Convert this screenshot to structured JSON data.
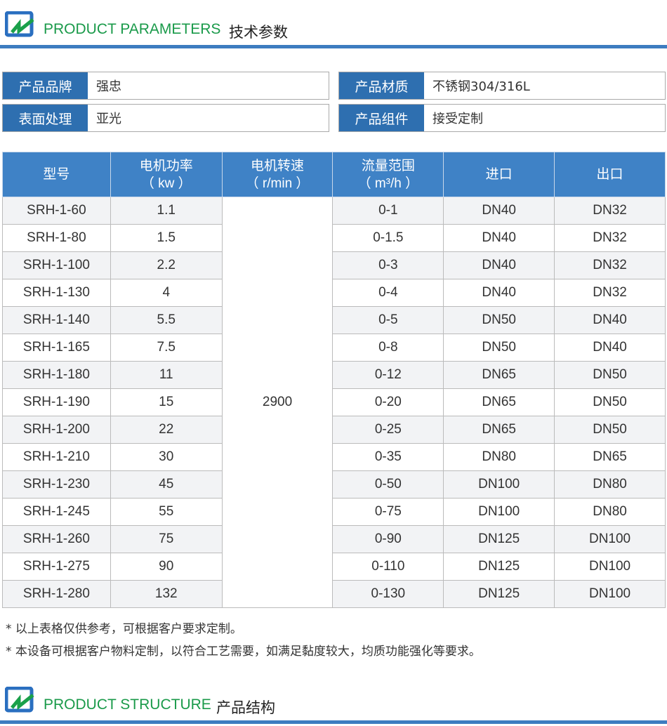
{
  "section1": {
    "en": "PRODUCT PARAMETERS",
    "cn": "技术参数"
  },
  "attributes": [
    {
      "key": "产品品牌",
      "value": "强忠"
    },
    {
      "key": "产品材质",
      "value": "不锈钢304/316L"
    },
    {
      "key": "表面处理",
      "value": "亚光"
    },
    {
      "key": "产品组件",
      "value": "接受定制"
    }
  ],
  "table": {
    "headers": [
      [
        "型号",
        ""
      ],
      [
        "电机功率",
        "（ kw ）"
      ],
      [
        "电机转速",
        "（ r/min ）"
      ],
      [
        "流量范围",
        "（ m³/h ）"
      ],
      [
        "进口",
        ""
      ],
      [
        "出口",
        ""
      ]
    ],
    "speed": "2900",
    "rows": [
      [
        "SRH-1-60",
        "1.1",
        "0-1",
        "DN40",
        "DN32"
      ],
      [
        "SRH-1-80",
        "1.5",
        "0-1.5",
        "DN40",
        "DN32"
      ],
      [
        "SRH-1-100",
        "2.2",
        "0-3",
        "DN40",
        "DN32"
      ],
      [
        "SRH-1-130",
        "4",
        "0-4",
        "DN40",
        "DN32"
      ],
      [
        "SRH-1-140",
        "5.5",
        "0-5",
        "DN50",
        "DN40"
      ],
      [
        "SRH-1-165",
        "7.5",
        "0-8",
        "DN50",
        "DN40"
      ],
      [
        "SRH-1-180",
        "11",
        "0-12",
        "DN65",
        "DN50"
      ],
      [
        "SRH-1-190",
        "15",
        "0-20",
        "DN65",
        "DN50"
      ],
      [
        "SRH-1-200",
        "22",
        "0-25",
        "DN65",
        "DN50"
      ],
      [
        "SRH-1-210",
        "30",
        "0-35",
        "DN80",
        "DN65"
      ],
      [
        "SRH-1-230",
        "45",
        "0-50",
        "DN100",
        "DN80"
      ],
      [
        "SRH-1-245",
        "55",
        "0-75",
        "DN100",
        "DN80"
      ],
      [
        "SRH-1-260",
        "75",
        "0-90",
        "DN125",
        "DN100"
      ],
      [
        "SRH-1-275",
        "90",
        "0-110",
        "DN125",
        "DN100"
      ],
      [
        "SRH-1-280",
        "132",
        "0-130",
        "DN125",
        "DN100"
      ]
    ]
  },
  "notes": [
    "* 以上表格仅供参考，可根据客户要求定制。",
    "* 本设备可根据客户物料定制，以符合工艺需要，如满足黏度较大，均质功能强化等要求。"
  ],
  "section2": {
    "en": "PRODUCT STRUCTURE",
    "cn": "产品结构"
  }
}
